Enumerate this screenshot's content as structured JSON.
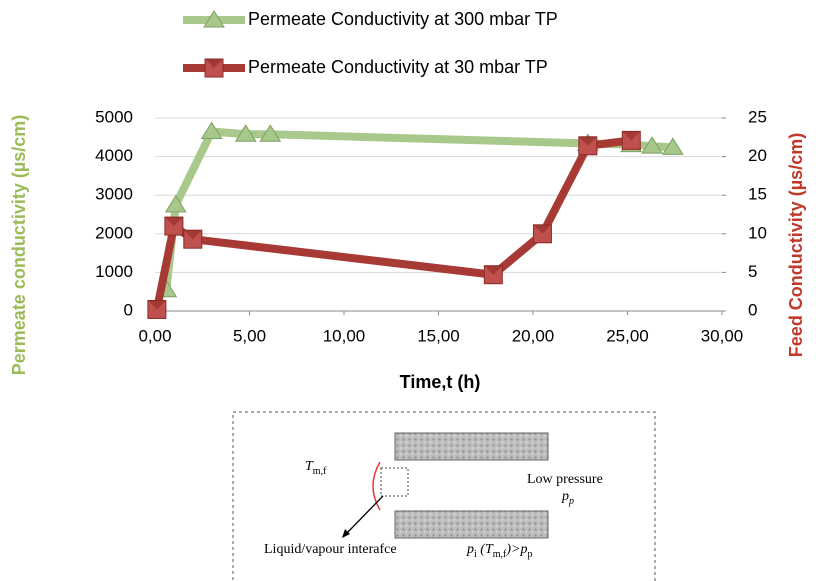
{
  "chart_data": {
    "type": "line",
    "x_label": "Time,t (h)",
    "y_label": "Permeate conductivity (µs/cm)",
    "y2_label": "Feed Conductivity (µs/cm)",
    "xlim": [
      0,
      30
    ],
    "xticks": [
      {
        "value": 0,
        "label": "0,00"
      },
      {
        "value": 5,
        "label": "5,00"
      },
      {
        "value": 10,
        "label": "10,00"
      },
      {
        "value": 15,
        "label": "15,00"
      },
      {
        "value": 20,
        "label": "20,00"
      },
      {
        "value": 25,
        "label": "25,00"
      },
      {
        "value": 30,
        "label": "30,00"
      }
    ],
    "ylim": [
      0,
      5000
    ],
    "yticks": [
      0,
      1000,
      2000,
      3000,
      4000,
      5000
    ],
    "y2lim": [
      0,
      25
    ],
    "y2ticks": [
      0,
      5,
      10,
      15,
      20,
      25
    ],
    "grid": true,
    "legend_position": "top",
    "series": [
      {
        "name": "Permeate Conductivity at 300 mbar TP",
        "color": "#a9c98c",
        "marker": "triangle",
        "axis": "y",
        "x": [
          0.6,
          1.1,
          3.0,
          4.8,
          6.1,
          22.9,
          25.2,
          26.3,
          27.4
        ],
        "values": [
          550,
          2750,
          4650,
          4580,
          4580,
          4340,
          4310,
          4270,
          4240
        ]
      },
      {
        "name": "Permeate Conductivity at 30 mbar TP",
        "color": "#a83a36",
        "marker": "square",
        "axis": "y2",
        "x": [
          0.1,
          1.0,
          2.0,
          17.9,
          20.5,
          22.9,
          25.2
        ],
        "values": [
          0.2,
          11.0,
          9.3,
          4.7,
          10.0,
          21.4,
          22.1
        ]
      }
    ]
  },
  "diagram": {
    "t_mf": {
      "main": "T",
      "sub": "m,f"
    },
    "low_pressure": "Low pressure",
    "p_p": {
      "main": "p",
      "sub": "p"
    },
    "interface": "Liquid/vapour interafce",
    "condition": [
      "p",
      "i",
      " (T",
      "m,f",
      ")>p",
      "p"
    ]
  }
}
